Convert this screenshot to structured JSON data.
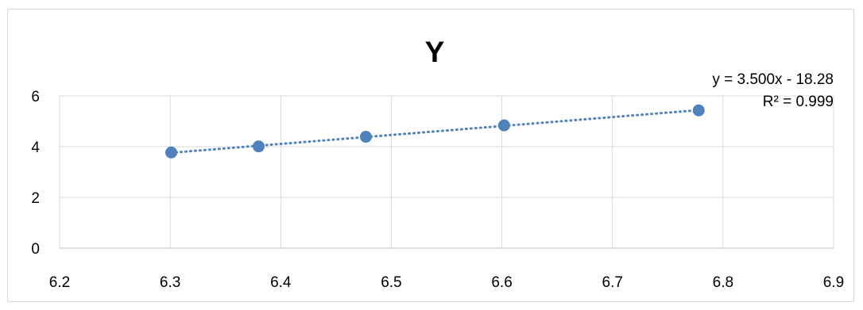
{
  "chart_data": {
    "type": "scatter",
    "title": "Y",
    "xlabel": "",
    "ylabel": "",
    "xlim": [
      6.2,
      6.9
    ],
    "ylim": [
      0,
      6
    ],
    "xticks": [
      "6.2",
      "6.3",
      "6.4",
      "6.5",
      "6.6",
      "6.7",
      "6.8",
      "6.9"
    ],
    "yticks": [
      "0",
      "2",
      "4",
      "6"
    ],
    "grid": true,
    "legend": "none",
    "series": [
      {
        "x": [
          6.301,
          6.38,
          6.477,
          6.602,
          6.778
        ],
        "y": [
          3.77,
          4.01,
          4.39,
          4.84,
          5.43
        ],
        "color": "#4f81bd"
      }
    ],
    "trendline": {
      "type": "linear",
      "style": "dotted",
      "color": "#4f81bd",
      "x_range": [
        6.301,
        6.778
      ],
      "equation": "y = 3.500x - 18.28",
      "r_squared": "R² = 0.999"
    }
  }
}
